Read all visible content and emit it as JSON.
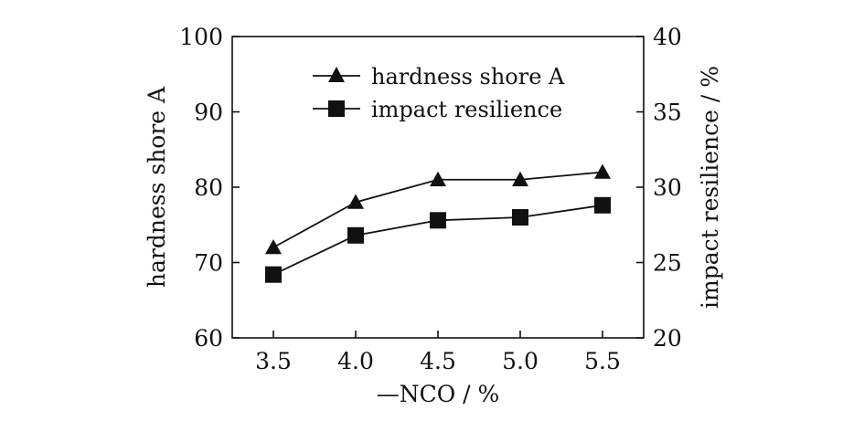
{
  "chart_data": {
    "type": "line",
    "x": [
      3.5,
      4.0,
      4.5,
      5.0,
      5.5
    ],
    "x_tick_labels": [
      "3.5",
      "4.0",
      "4.5",
      "5.0",
      "5.5"
    ],
    "xlabel": "—NCO / %",
    "ylabel_left": "hardness shore A",
    "ylabel_right": "impact resilience / %",
    "ylim_left": [
      60,
      100
    ],
    "ylim_right": [
      20,
      40
    ],
    "y_left_ticks": [
      "60",
      "70",
      "80",
      "90",
      "100"
    ],
    "y_right_ticks": [
      "20",
      "25",
      "30",
      "35",
      "40"
    ],
    "grid": false,
    "legend_position": "top-center",
    "series": [
      {
        "name": "hardness shore A",
        "axis": "left",
        "marker": "triangle",
        "values": [
          72,
          78,
          81,
          81,
          82
        ]
      },
      {
        "name": "impact resilience",
        "axis": "right",
        "marker": "square",
        "values": [
          24.2,
          26.8,
          27.8,
          28.0,
          28.8
        ]
      }
    ]
  }
}
